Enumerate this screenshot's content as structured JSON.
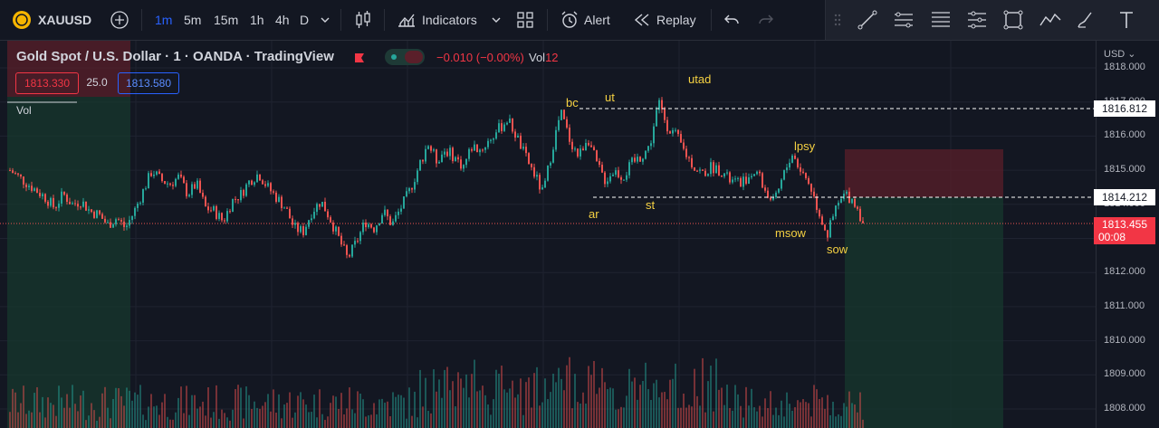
{
  "toolbar": {
    "symbol": "XAUUSD",
    "timeframes": [
      "1m",
      "5m",
      "15m",
      "1h",
      "4h",
      "D"
    ],
    "active_timeframe": "1m",
    "indicators_label": "Indicators",
    "alert_label": "Alert",
    "replay_label": "Replay"
  },
  "legend": {
    "title": "Gold Spot / U.S. Dollar · 1 · OANDA · TradingView",
    "change": "−0.010 (−0.00%)",
    "vol_label": "Vol",
    "vol_value": "12",
    "bid": "1813.330",
    "spread": "25.0",
    "ask": "1813.580",
    "volume_pane_label": "Vol"
  },
  "price_axis": {
    "currency": "USD",
    "ticks": [
      "1818.000",
      "1817.000",
      "1816.000",
      "1815.000",
      "1814.000",
      "1813.000",
      "1812.000",
      "1811.000",
      "1810.000",
      "1809.000",
      "1808.000"
    ],
    "label_upper": "1816.812",
    "label_lower": "1814.212",
    "current_price": "1813.455",
    "countdown": "00:08"
  },
  "annotations": [
    "bc",
    "ut",
    "utad",
    "ar",
    "st",
    "lpsy",
    "msow",
    "sow"
  ],
  "colors": {
    "up": "#26a69a",
    "down": "#ef5350",
    "background": "#131722",
    "label": "#f5d142",
    "accent": "#2962ff"
  },
  "chart_data": {
    "type": "candlestick",
    "ylim": [
      1807.8,
      1818.2
    ],
    "close_path": [
      1815.0,
      1814.8,
      1814.6,
      1814.4,
      1814.2,
      1813.9,
      1814.3,
      1814.0,
      1814.1,
      1813.8,
      1813.7,
      1813.4,
      1813.6,
      1813.3,
      1813.8,
      1814.4,
      1815.0,
      1814.7,
      1814.6,
      1814.8,
      1814.3,
      1814.6,
      1813.9,
      1813.8,
      1813.5,
      1814.1,
      1814.3,
      1814.7,
      1814.9,
      1814.5,
      1814.2,
      1813.9,
      1813.3,
      1813.2,
      1813.8,
      1814.1,
      1813.6,
      1813.0,
      1812.4,
      1812.9,
      1813.5,
      1813.3,
      1813.8,
      1813.4,
      1813.9,
      1814.4,
      1815.1,
      1815.8,
      1815.3,
      1815.6,
      1815.4,
      1815.1,
      1815.7,
      1815.6,
      1815.9,
      1816.2,
      1816.5,
      1816.0,
      1815.4,
      1814.9,
      1814.3,
      1815.6,
      1816.7,
      1815.9,
      1815.4,
      1816.0,
      1815.2,
      1814.7,
      1815.0,
      1814.8,
      1815.2,
      1815.4,
      1815.7,
      1817.0,
      1816.3,
      1816.0,
      1815.5,
      1815.1,
      1814.9,
      1815.1,
      1815.0,
      1814.7,
      1814.6,
      1814.8,
      1815.0,
      1814.4,
      1814.0,
      1814.8,
      1815.5,
      1815.0,
      1814.6,
      1813.8,
      1813.1,
      1813.9,
      1814.3,
      1814.1,
      1813.5
    ]
  }
}
